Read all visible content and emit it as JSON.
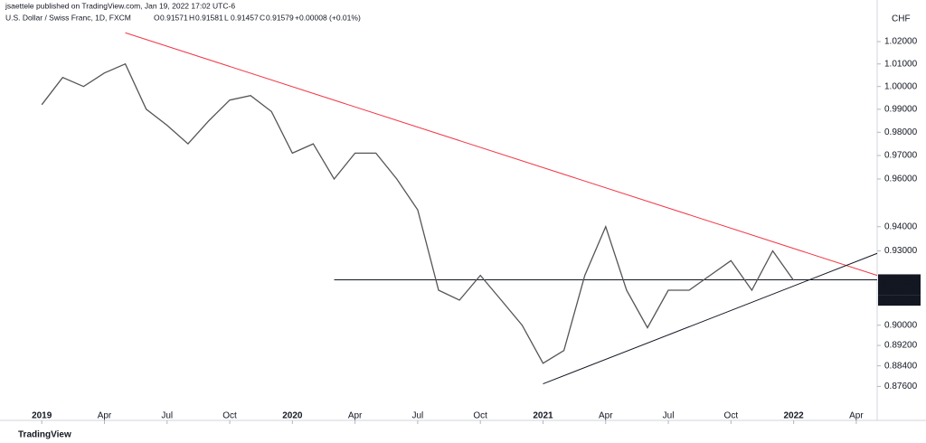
{
  "header": {
    "publisher": "jsaettele published on TradingView.com, Jan 19, 2022 17:02 UTC-6",
    "symbol": "U.S. Dollar / Swiss Franc, 1D, FXCM",
    "ohlc": [
      "O",
      "0.91571",
      "H",
      "0.91581",
      "L",
      "0.91457",
      "C",
      "0.91579",
      "+0.00008 (+0.01%)"
    ]
  },
  "footer": {
    "brand": "TradingView"
  },
  "chart_data": {
    "type": "line",
    "currency": "CHF",
    "log_scale": true,
    "grid": false,
    "x": [
      "2019-01",
      "2019-02",
      "2019-03",
      "2019-04",
      "2019-05",
      "2019-06",
      "2019-07",
      "2019-08",
      "2019-09",
      "2019-10",
      "2019-11",
      "2019-12",
      "2020-01",
      "2020-02",
      "2020-03",
      "2020-04",
      "2020-05",
      "2020-06",
      "2020-07",
      "2020-08",
      "2020-09",
      "2020-10",
      "2020-11",
      "2020-12",
      "2021-01",
      "2021-02",
      "2021-03",
      "2021-04",
      "2021-05",
      "2021-06",
      "2021-07",
      "2021-08",
      "2021-09",
      "2021-10",
      "2021-11",
      "2021-12",
      "2022-01"
    ],
    "series": [
      {
        "color": "#555555",
        "values": [
          0.992,
          1.004,
          1.0,
          1.006,
          1.01,
          0.99,
          0.983,
          0.975,
          0.985,
          0.994,
          0.996,
          0.989,
          0.971,
          0.975,
          0.96,
          0.971,
          0.971,
          0.96,
          0.947,
          0.914,
          0.91,
          0.92,
          0.91,
          0.9,
          0.885,
          0.89,
          0.92,
          0.94,
          0.914,
          0.899,
          0.914,
          0.914,
          0.92,
          0.926,
          0.914,
          0.93,
          0.918
        ]
      }
    ],
    "trendlines": [
      {
        "color": "#f23645",
        "x": [
          "2019-05",
          "2022-05"
        ],
        "y": [
          1.024,
          0.92
        ]
      },
      {
        "color": "#131722",
        "x": [
          "2021-01",
          "2022-05"
        ],
        "y": [
          0.877,
          0.929
        ]
      },
      {
        "color": "#131722",
        "x": [
          "2020-03",
          "2022-05"
        ],
        "y": [
          0.91823,
          0.91823
        ]
      }
    ],
    "price_labels": [
      {
        "value": 0.91823,
        "label": "0.91823"
      },
      {
        "value": 0.91579,
        "label": "0.91579"
      }
    ],
    "countdown": "22:57:22",
    "xlim": [
      "2018-11",
      "2022-05"
    ],
    "xticks": [
      {
        "value": "2019-01",
        "label": "2019"
      },
      {
        "value": "2019-04",
        "label": "Apr"
      },
      {
        "value": "2019-07",
        "label": "Jul"
      },
      {
        "value": "2019-10",
        "label": "Oct"
      },
      {
        "value": "2020-01",
        "label": "2020"
      },
      {
        "value": "2020-04",
        "label": "Apr"
      },
      {
        "value": "2020-07",
        "label": "Jul"
      },
      {
        "value": "2020-10",
        "label": "Oct"
      },
      {
        "value": "2021-01",
        "label": "2021"
      },
      {
        "value": "2021-04",
        "label": "Apr"
      },
      {
        "value": "2021-07",
        "label": "Jul"
      },
      {
        "value": "2021-10",
        "label": "Oct"
      },
      {
        "value": "2022-01",
        "label": "2022"
      },
      {
        "value": "2022-04",
        "label": "Apr"
      }
    ],
    "ylim": [
      0.864,
      1.0356
    ],
    "yticks": [
      {
        "value": 1.02,
        "label": "1.02000"
      },
      {
        "value": 1.01,
        "label": "1.01000"
      },
      {
        "value": 1.0,
        "label": "1.00000"
      },
      {
        "value": 0.99,
        "label": "0.99000"
      },
      {
        "value": 0.98,
        "label": "0.98000"
      },
      {
        "value": 0.97,
        "label": "0.97000"
      },
      {
        "value": 0.96,
        "label": "0.96000"
      },
      {
        "value": 0.94,
        "label": "0.94000"
      },
      {
        "value": 0.93,
        "label": "0.93000"
      },
      {
        "value": 0.9,
        "label": "0.90000"
      },
      {
        "value": 0.892,
        "label": "0.89200"
      },
      {
        "value": 0.884,
        "label": "0.88400"
      },
      {
        "value": 0.876,
        "label": "0.87600"
      }
    ]
  }
}
